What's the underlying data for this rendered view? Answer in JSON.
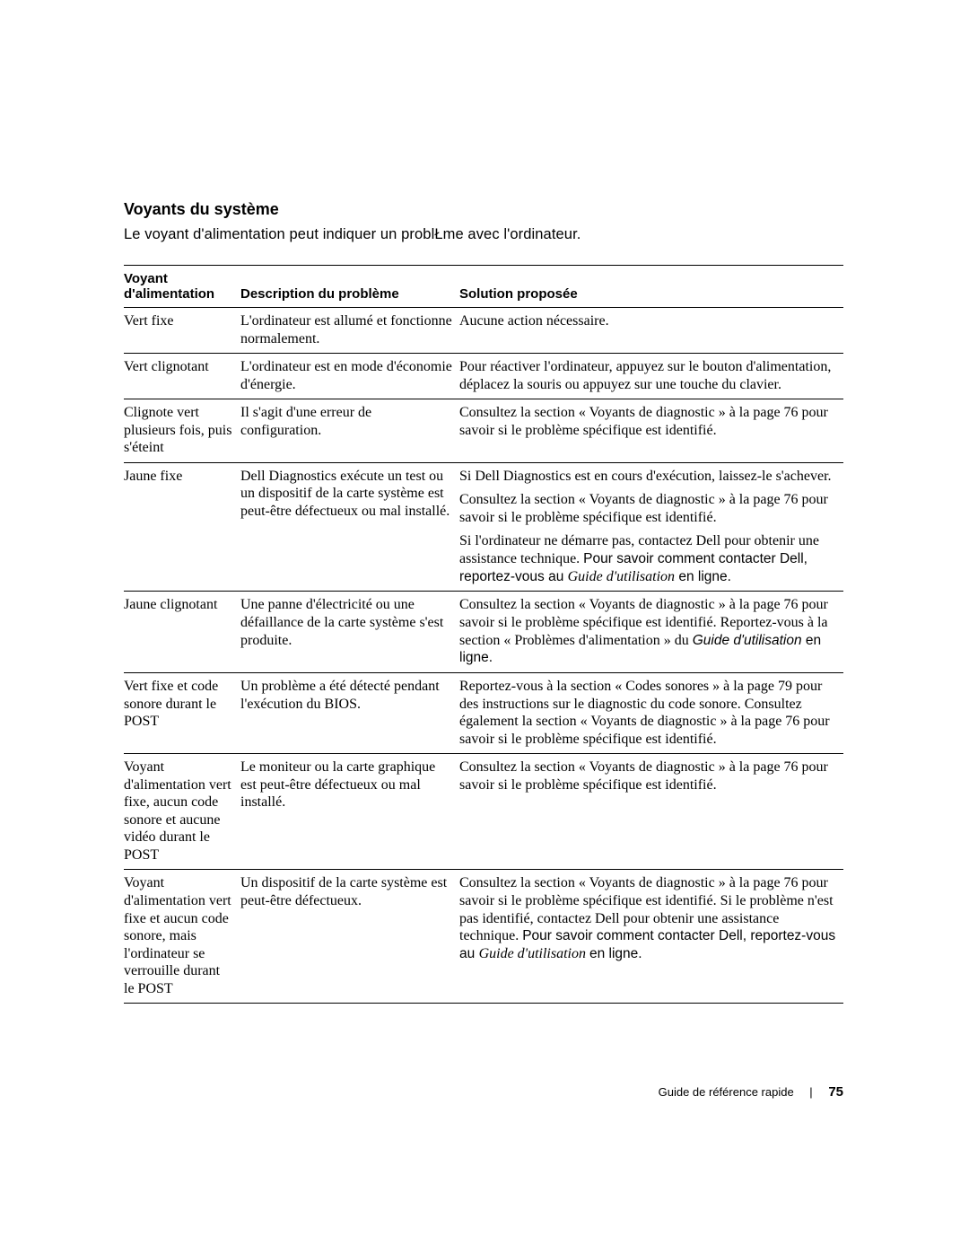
{
  "section_title": "Voyants du système",
  "intro_text": "Le voyant d'alimentation peut indiquer un problŁme avec l'ordinateur.",
  "table": {
    "headers": {
      "col1": "Voyant d'alimentation",
      "col2": "Description du problème",
      "col3": "Solution proposée"
    },
    "rows": [
      {
        "c1": "Vert fixe",
        "c2": "L'ordinateur est allumé et fonctionne normalement.",
        "c3": [
          "Aucune action nécessaire."
        ]
      },
      {
        "c1": "Vert clignotant",
        "c2": "L'ordinateur est en mode d'économie d'énergie.",
        "c3": [
          "Pour réactiver l'ordinateur, appuyez sur le bouton d'alimentation, déplacez la souris ou appuyez sur une touche du clavier."
        ]
      },
      {
        "c1": "Clignote vert plusieurs fois, puis s'éteint",
        "c2": "Il s'agit d'une erreur de configuration.",
        "c3": [
          "Consultez la section « Voyants de diagnostic » à la page 76 pour savoir si le problème spécifique est identifié."
        ]
      },
      {
        "c1": "Jaune fixe",
        "c2": "Dell Diagnostics exécute un test ou un dispositif de la carte système est peut-être défectueux ou mal installé.",
        "c3": [
          "Si Dell Diagnostics est en cours d'exécution, laissez-le s'achever.",
          "Consultez la section « Voyants de diagnostic » à la page 76 pour savoir si le problème spécifique est identifié.",
          "Si l'ordinateur ne démarre pas, contactez Dell pour obtenir une assistance technique. <span class=\"sans\">Pour savoir comment contacter Dell, reportez-vous au </span><i>Guide d'utilisation</i><span class=\"sans\"> en ligne.</span>"
        ]
      },
      {
        "c1": "Jaune clignotant",
        "c2": "Une panne d'électricité ou une défaillance de la carte système s'est produite.",
        "c3": [
          "Consultez la section « Voyants de diagnostic » à la page 76 pour savoir si le problème spécifique est identifié. Reportez-vous à la section « Problèmes d'alimentation » du <span class=\"sans\"><i>Guide d'utilisation</i> en ligne.</span>"
        ]
      },
      {
        "c1": "Vert fixe et code sonore durant le POST",
        "c2": "Un problème a été détecté pendant l'exécution du BIOS.",
        "c3": [
          "Reportez-vous à la section « Codes sonores » à la page 79 pour des instructions sur le diagnostic du code sonore. Consultez également la section « Voyants de diagnostic » à la page 76 pour savoir si le problème spécifique est identifié."
        ]
      },
      {
        "c1": "Voyant d'alimentation vert fixe, aucun code sonore et aucune vidéo durant le POST",
        "c2": "Le moniteur ou la carte graphique est peut-être défectueux ou mal installé.",
        "c3": [
          "Consultez la section « Voyants de diagnostic » à la page 76 pour savoir si le problème spécifique est identifié."
        ]
      },
      {
        "c1": "Voyant d'alimentation vert fixe et aucun code sonore, mais l'ordinateur se verrouille durant le POST",
        "c2": "Un dispositif de la carte système est peut-être défectueux.",
        "c3": [
          "Consultez la section « Voyants de diagnostic » à la page 76 pour savoir si le problème spécifique est identifié. Si le problème n'est pas identifié, contactez Dell pour obtenir une assistance technique. <span class=\"sans\">Pour savoir comment contacter Dell, reportez-vous au </span><i>Guide d'utilisation</i> <span class=\"sans\">en ligne.</span>"
        ]
      }
    ]
  },
  "footer": {
    "doc_title": "Guide de référence rapide",
    "separator": "|",
    "page_number": "75"
  },
  "colors": {
    "text": "#000000",
    "background": "#ffffff",
    "rule": "#000000"
  },
  "fonts": {
    "heading_family": "Arial",
    "body_family": "Georgia",
    "heading_size_pt": 13,
    "body_size_pt": 12,
    "footer_size_pt": 10
  }
}
